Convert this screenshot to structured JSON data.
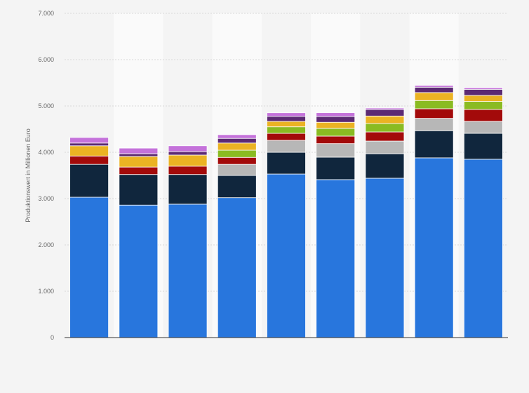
{
  "chart_data": {
    "type": "bar",
    "stacked": true,
    "title": "",
    "xlabel": "",
    "ylabel": "Produktionswert in Millionen Euro",
    "ylim": [
      0,
      7000
    ],
    "yticks": [
      0,
      1000,
      2000,
      3000,
      4000,
      5000,
      6000,
      7000
    ],
    "ytick_labels": [
      "0",
      "1.000",
      "2.000",
      "3.000",
      "4.000",
      "5.000",
      "6.000",
      "7.000"
    ],
    "grid": true,
    "legend": "none",
    "categories": [
      "",
      "",
      "",
      "",
      "",
      "",
      "",
      "",
      ""
    ],
    "series": [
      {
        "color": "#2876dd",
        "values": [
          3030,
          2860,
          2880,
          3020,
          3530,
          3410,
          3440,
          3880,
          3850
        ]
      },
      {
        "color": "#10263d",
        "values": [
          710,
          660,
          640,
          480,
          470,
          485,
          530,
          586,
          560
        ]
      },
      {
        "color": "#b7b7b7",
        "values": [
          0,
          0,
          0,
          240,
          258,
          292,
          272,
          267,
          258
        ]
      },
      {
        "color": "#a30a0a",
        "values": [
          180,
          160,
          180,
          150,
          151,
          162,
          197,
          207,
          257
        ]
      },
      {
        "color": "#8abb22",
        "values": [
          0,
          0,
          0,
          155,
          141,
          167,
          182,
          177,
          172
        ]
      },
      {
        "color": "#ebb323",
        "values": [
          220,
          230,
          240,
          155,
          117,
          132,
          162,
          172,
          131
        ]
      },
      {
        "color": "#5c2a73",
        "values": [
          60,
          60,
          75,
          100,
          110,
          126,
          141,
          116,
          131
        ]
      },
      {
        "color": "#c472da",
        "values": [
          120,
          120,
          125,
          80,
          76,
          80,
          31,
          40,
          36
        ]
      }
    ]
  }
}
